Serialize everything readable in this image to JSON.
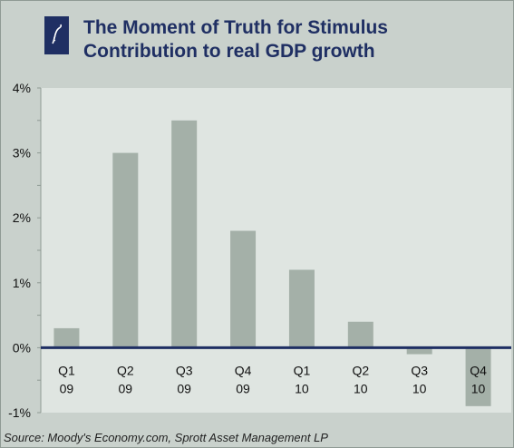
{
  "header": {
    "title_line1": "The Moment of Truth for Stimulus",
    "title_line2": "Contribution to real GDP growth"
  },
  "source": "Source: Moody's Economy.com, Sprott Asset Management LP",
  "colors": {
    "background": "#c9d1cc",
    "plot_background": "#dfe5e1",
    "bar": "#a4b0a8",
    "zero_line": "#1f2f63",
    "title": "#1f2f63"
  },
  "chart_data": {
    "type": "bar",
    "title": "The Moment of Truth for Stimulus",
    "subtitle": "Contribution to real GDP growth",
    "categories": [
      [
        "Q1",
        "09"
      ],
      [
        "Q2",
        "09"
      ],
      [
        "Q3",
        "09"
      ],
      [
        "Q4",
        "09"
      ],
      [
        "Q1",
        "10"
      ],
      [
        "Q2",
        "10"
      ],
      [
        "Q3",
        "10"
      ],
      [
        "Q4",
        "10"
      ]
    ],
    "values": [
      0.3,
      3.0,
      3.5,
      1.8,
      1.2,
      0.4,
      -0.1,
      -0.9
    ],
    "unit": "%",
    "ylim": [
      -1,
      4
    ],
    "yticks": [
      -1,
      0,
      1,
      2,
      3,
      4
    ],
    "ytick_labels": [
      "-1%",
      "0%",
      "1%",
      "2%",
      "3%",
      "4%"
    ],
    "xlabel": "",
    "ylabel": "",
    "grid": false,
    "legend": "none"
  }
}
